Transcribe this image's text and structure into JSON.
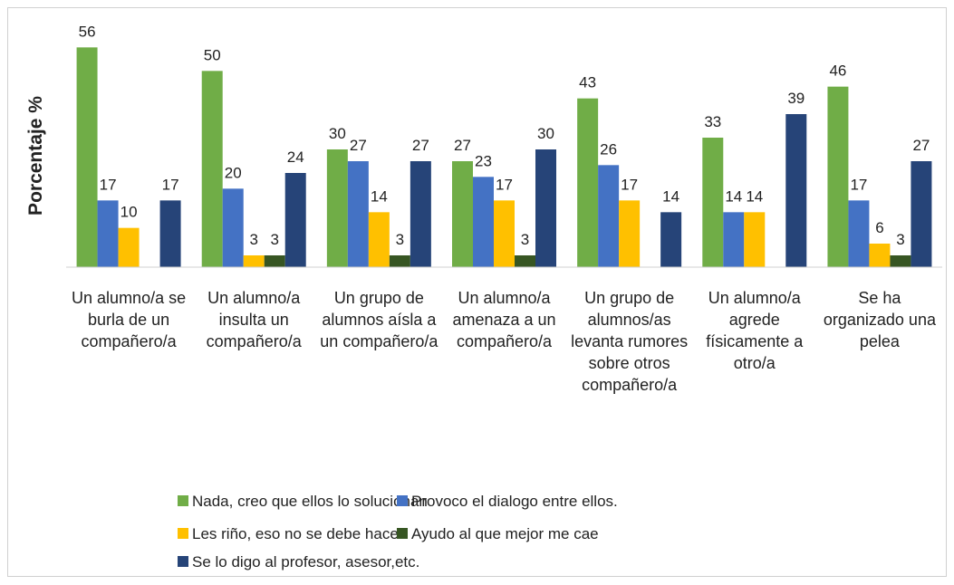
{
  "chart_data": {
    "type": "bar",
    "y_label": "Porcentaje %",
    "categories": [
      "Un alumno/a se burla de un compañero/a",
      "Un alumno/a insulta un compañero/a",
      "Un grupo de alumnos aísla a un compañero/a",
      "Un alumno/a amenaza a un compañero/a",
      "Un grupo de alumnos/as levanta rumores sobre otros compañero/a",
      "Un alumno/a agrede físicamente a otro/a",
      "Se ha organizado una pelea"
    ],
    "series": [
      {
        "name": "Nada, creo que ellos lo solucionan",
        "color": "#70ad47",
        "values": [
          56,
          50,
          30,
          27,
          43,
          33,
          46
        ]
      },
      {
        "name": "Provoco el dialogo entre ellos.",
        "color": "#4472c4",
        "values": [
          17,
          20,
          27,
          23,
          26,
          14,
          17
        ]
      },
      {
        "name": "Les riño, eso no se debe hacer",
        "color": "#ffc000",
        "values": [
          10,
          3,
          14,
          17,
          17,
          14,
          6
        ]
      },
      {
        "name": "Ayudo al que mejor me cae",
        "color": "#375623",
        "values": [
          null,
          3,
          3,
          3,
          null,
          null,
          3
        ]
      },
      {
        "name": "Se lo digo al profesor, asesor,etc.",
        "color": "#264478",
        "values": [
          17,
          24,
          27,
          30,
          14,
          39,
          27
        ]
      }
    ],
    "ylim": [
      0,
      60
    ]
  }
}
